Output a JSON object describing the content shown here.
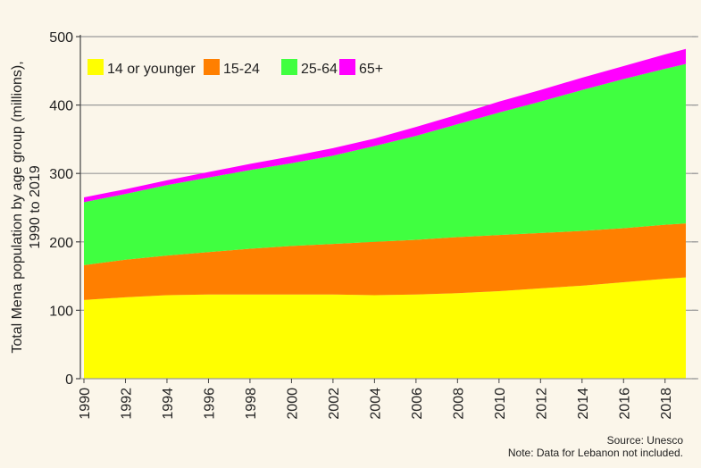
{
  "chart_data": {
    "type": "area",
    "stacked": true,
    "title": "",
    "xlabel": "",
    "ylabel": "Total Mena population by age group (millions), 1990 to 2019",
    "ylim": [
      0,
      500
    ],
    "yticks": [
      0,
      100,
      200,
      300,
      400,
      500
    ],
    "xlim": [
      1990,
      2019
    ],
    "xticks": [
      "1990",
      "1992",
      "1994",
      "1996",
      "1998",
      "2000",
      "2002",
      "2004",
      "2006",
      "2008",
      "2010",
      "2012",
      "2014",
      "2016",
      "2018"
    ],
    "grid": true,
    "legend_position": "top-left",
    "x": [
      1990,
      1992,
      1994,
      1996,
      1998,
      2000,
      2002,
      2004,
      2006,
      2008,
      2010,
      2012,
      2014,
      2016,
      2018,
      2019
    ],
    "series": [
      {
        "name": "14 or younger",
        "color": "#ffff00",
        "values": [
          115,
          119,
          122,
          123,
          123,
          123,
          123,
          122,
          123,
          125,
          128,
          132,
          136,
          141,
          146,
          148
        ]
      },
      {
        "name": "15-24",
        "color": "#ff7f00",
        "values": [
          51,
          55,
          58,
          62,
          67,
          71,
          74,
          78,
          80,
          82,
          82,
          81,
          80,
          79,
          79,
          79
        ]
      },
      {
        "name": "25-64",
        "color": "#40ff40",
        "values": [
          92,
          96,
          103,
          109,
          115,
          121,
          129,
          140,
          152,
          165,
          179,
          192,
          206,
          218,
          228,
          233
        ]
      },
      {
        "name": "65+",
        "color": "#ff00ff",
        "values": [
          7,
          7,
          7,
          8,
          9,
          10,
          11,
          11,
          13,
          14,
          16,
          17,
          18,
          19,
          21,
          22
        ]
      }
    ],
    "source": "Source: Unesco",
    "note": "Note: Data for Lebanon not included."
  }
}
